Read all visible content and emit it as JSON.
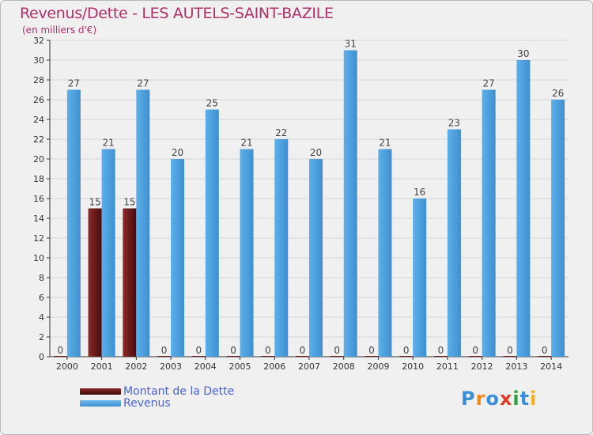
{
  "chart_data": {
    "type": "bar",
    "title": "Revenus/Dette - LES AUTELS-SAINT-BAZILE",
    "subtitle": "(en milliers d'€)",
    "categories": [
      "2000",
      "2001",
      "2002",
      "2003",
      "2004",
      "2005",
      "2006",
      "2007",
      "2008",
      "2009",
      "2010",
      "2011",
      "2012",
      "2013",
      "2014"
    ],
    "series": [
      {
        "name": "Montant de la Dette",
        "color": "#6b1717",
        "values": [
          0,
          15,
          15,
          0,
          0,
          0,
          0,
          0,
          0,
          0,
          0,
          0,
          0,
          0,
          0
        ]
      },
      {
        "name": "Revenus",
        "color": "#4ea6e6",
        "values": [
          27,
          21,
          27,
          20,
          25,
          21,
          22,
          20,
          31,
          21,
          16,
          23,
          27,
          30,
          26
        ]
      }
    ],
    "ylim": [
      0,
      32
    ],
    "yticks": [
      0,
      2,
      4,
      6,
      8,
      10,
      12,
      14,
      16,
      18,
      20,
      22,
      24,
      26,
      28,
      30,
      32
    ],
    "grid": true,
    "legend_position": "bottom-left"
  },
  "logo": {
    "text": "Proxiti",
    "letters": [
      "P",
      "r",
      "o",
      "x",
      "i",
      "t",
      "i"
    ],
    "colors": [
      "#3a8fd8",
      "#f08a1a",
      "#3a8fd8",
      "#e23d28",
      "#2e9e3e",
      "#3a8fd8",
      "#f0b21a"
    ]
  }
}
